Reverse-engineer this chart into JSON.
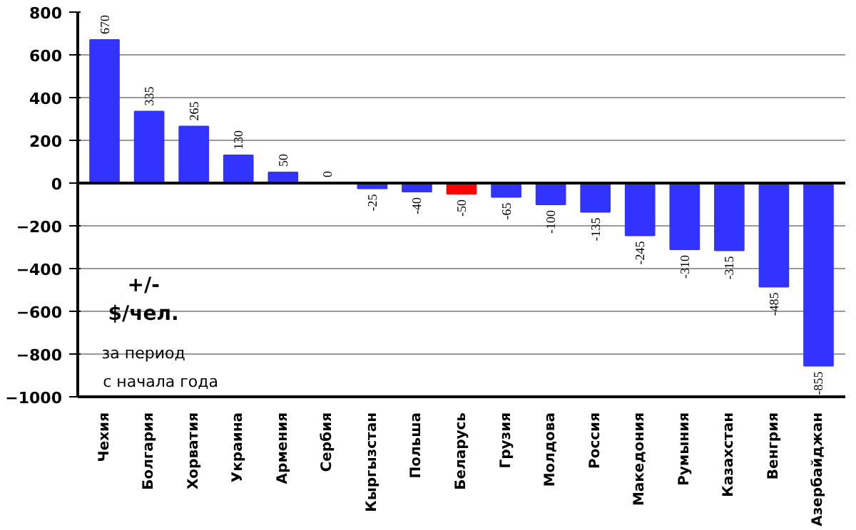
{
  "chart_data": {
    "type": "bar",
    "categories": [
      "Чехия",
      "Болгария",
      "Хорватия",
      "Украина",
      "Армения",
      "Сербия",
      "Кыргызстан",
      "Польша",
      "Беларусь",
      "Грузия",
      "Молдова",
      "Россия",
      "Македония",
      "Румыния",
      "Казахстан",
      "Венгрия",
      "Азербайджан"
    ],
    "values": [
      670,
      335,
      265,
      130,
      50,
      0,
      -25,
      -40,
      -50,
      -65,
      -100,
      -135,
      -245,
      -310,
      -315,
      -485,
      -855
    ],
    "colors": [
      "#3333ff",
      "#3333ff",
      "#3333ff",
      "#3333ff",
      "#3333ff",
      "#3333ff",
      "#3333ff",
      "#3333ff",
      "#ff0000",
      "#3333ff",
      "#3333ff",
      "#3333ff",
      "#3333ff",
      "#3333ff",
      "#3333ff",
      "#3333ff",
      "#3333ff"
    ],
    "ylim": [
      -1000,
      800
    ],
    "yticks": [
      -1000,
      -800,
      -600,
      -400,
      -200,
      0,
      200,
      400,
      600,
      800
    ],
    "grid": "y",
    "data_labels": true,
    "annotations": [
      "+/-",
      "$/чел.",
      "за период",
      "с начала года"
    ]
  }
}
